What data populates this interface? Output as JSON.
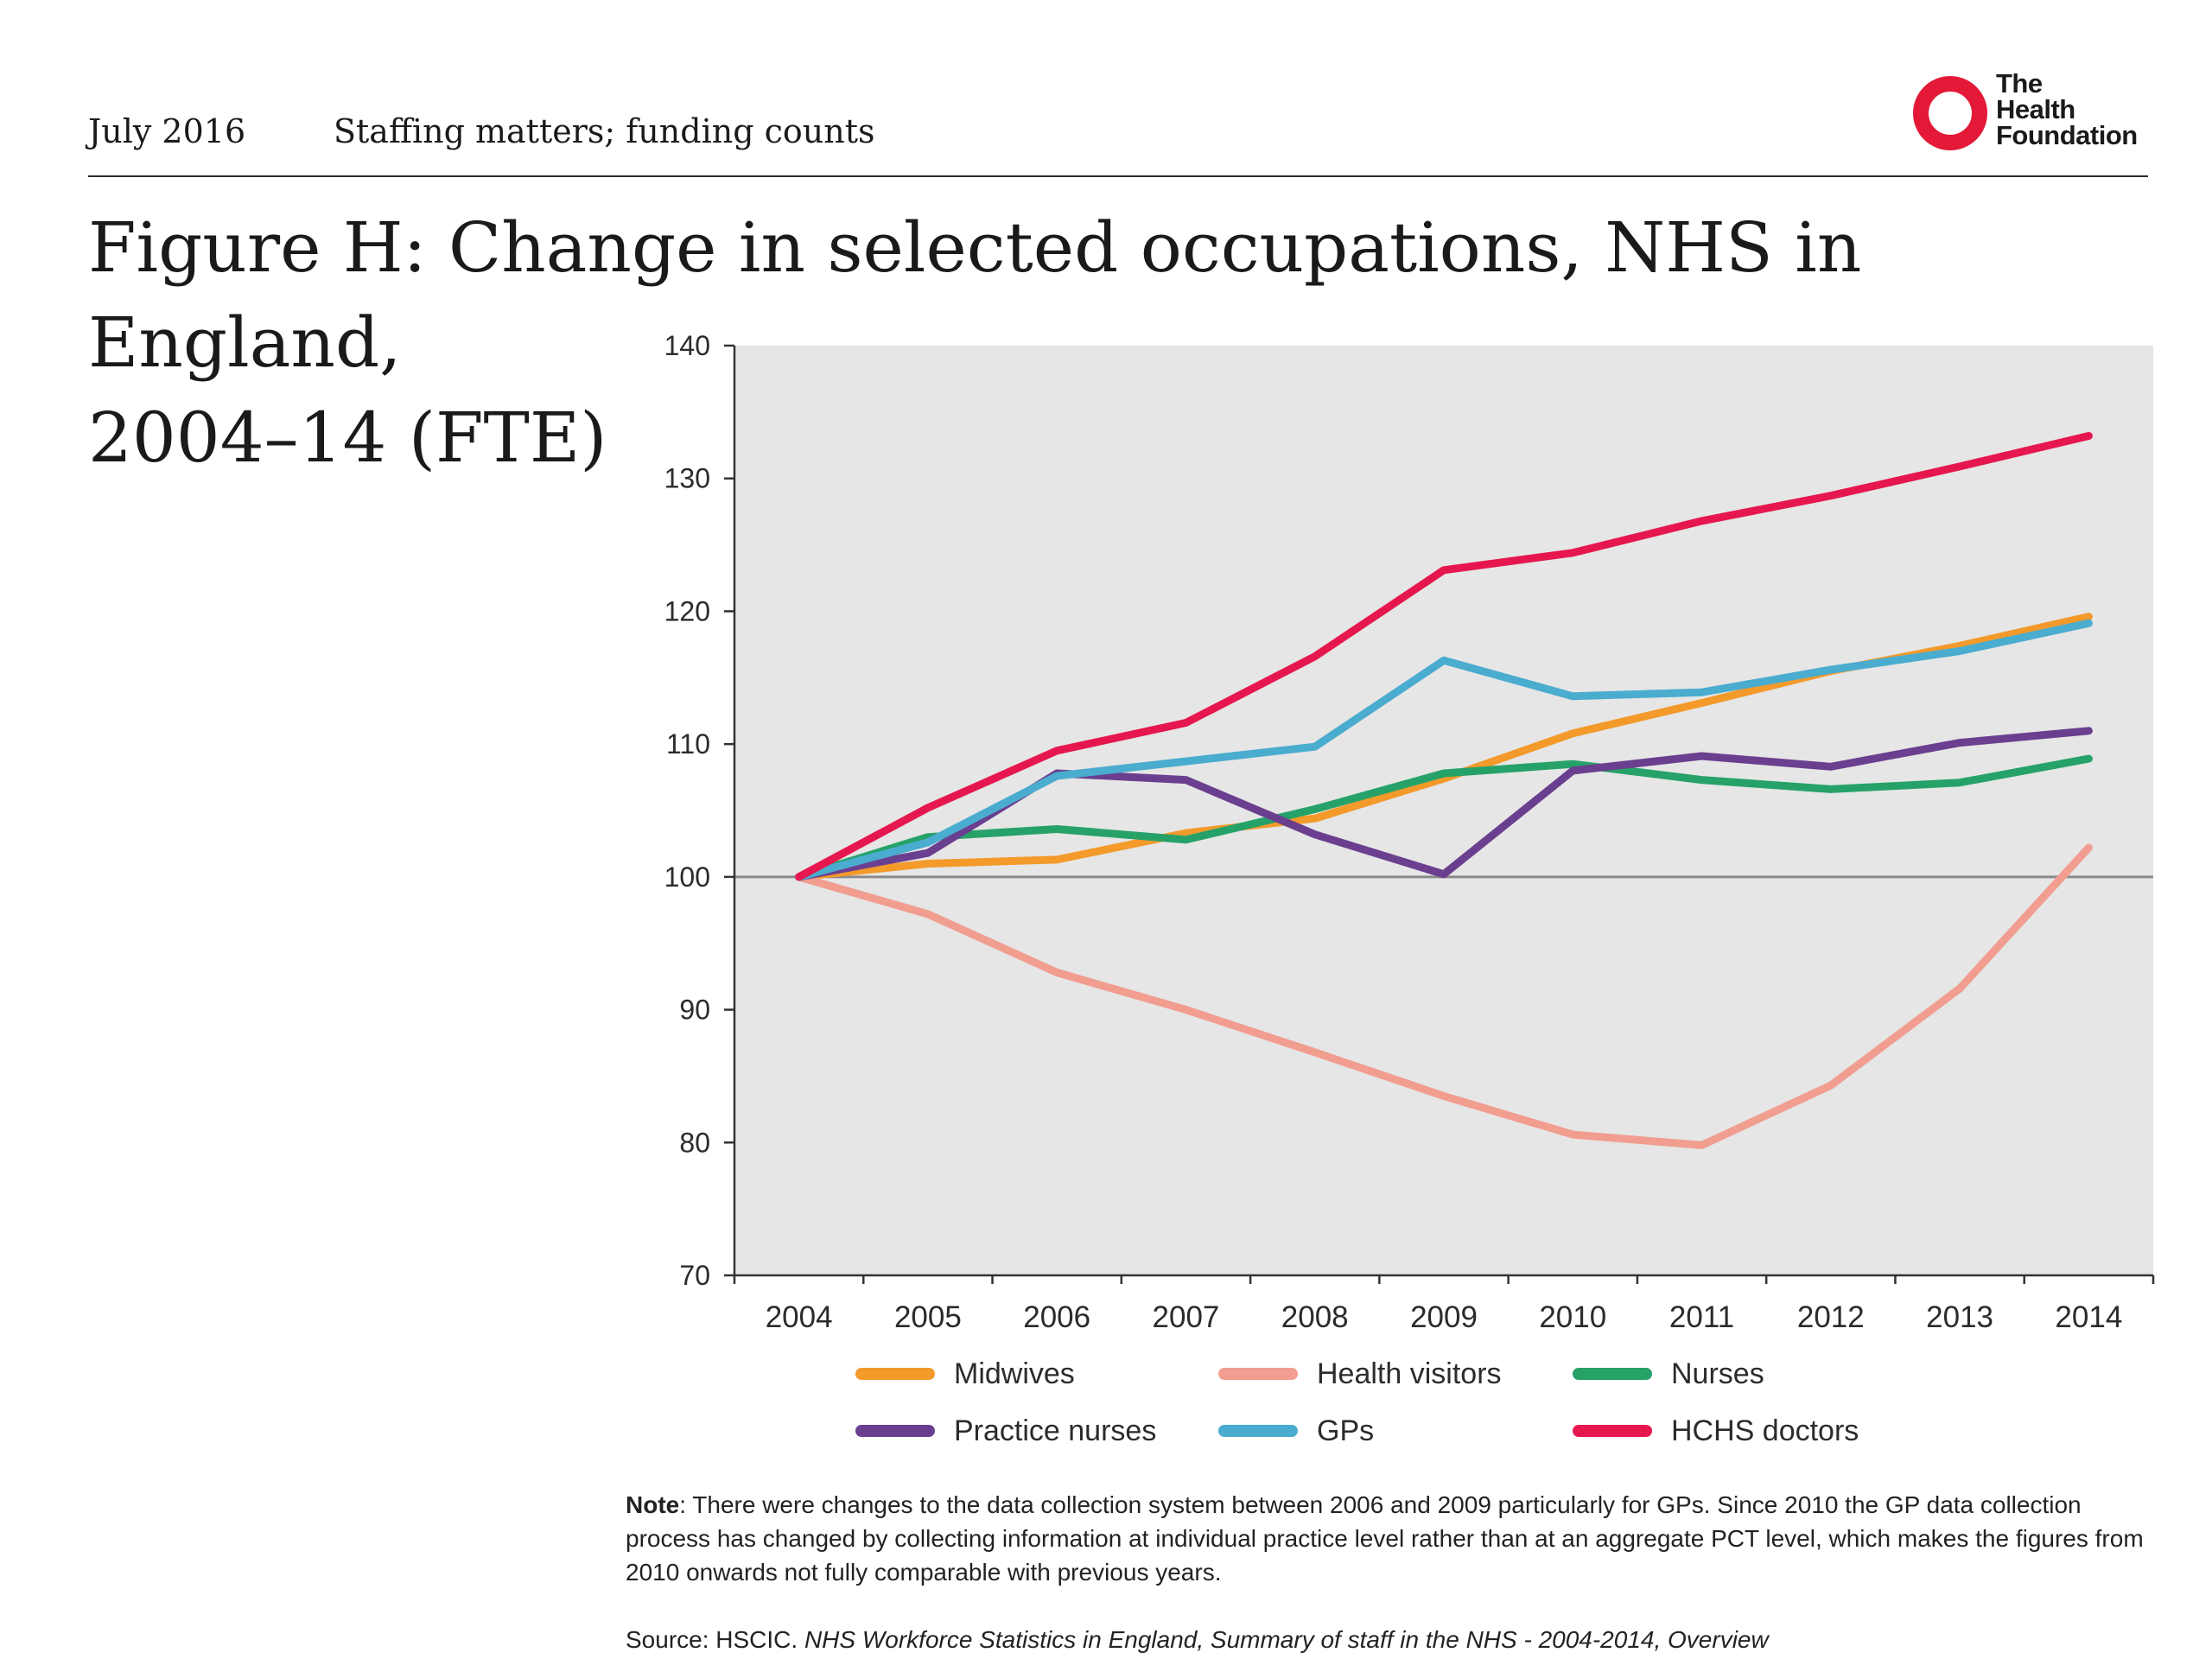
{
  "header": {
    "date": "July 2016",
    "report_title": "Staffing matters; funding counts"
  },
  "logo": {
    "line1": "The",
    "line2": "Health",
    "line3": "Foundation",
    "ring_color": "#e31937"
  },
  "figure": {
    "title_line1": "Figure H: Change in selected occupations, NHS in England,",
    "title_line2": "2004–14 (FTE)"
  },
  "chart_data": {
    "type": "line",
    "title": "Figure H: Change in selected occupations, NHS in England, 2004–14 (FTE)",
    "xlabel": "",
    "ylabel": "",
    "categories": [
      "2004",
      "2005",
      "2006",
      "2007",
      "2008",
      "2009",
      "2010",
      "2011",
      "2012",
      "2013",
      "2014"
    ],
    "ylim": [
      70,
      140
    ],
    "yticks": [
      70,
      80,
      90,
      100,
      110,
      120,
      130,
      140
    ],
    "reference_line": 100,
    "plot_background": "#e6e6e6",
    "grid": false,
    "legend_position": "bottom",
    "series": [
      {
        "name": "Midwives",
        "color": "#f39a2b",
        "values": [
          100,
          101,
          101.3,
          103.3,
          104.4,
          107.4,
          110.8,
          113.1,
          115.5,
          117.4,
          119.6
        ]
      },
      {
        "name": "Health visitors",
        "color": "#f19d8f",
        "values": [
          100,
          97.2,
          92.8,
          90.0,
          86.8,
          83.5,
          80.6,
          79.8,
          84.3,
          91.6,
          102.2
        ]
      },
      {
        "name": "Nurses",
        "color": "#26a269",
        "values": [
          100,
          103,
          103.6,
          102.8,
          105.1,
          107.8,
          108.5,
          107.3,
          106.6,
          107.1,
          108.9
        ]
      },
      {
        "name": "Practice nurses",
        "color": "#6b3f8f",
        "values": [
          100,
          101.8,
          107.8,
          107.3,
          103.2,
          100.2,
          108.0,
          109.1,
          108.3,
          110.1,
          111.0
        ]
      },
      {
        "name": "GPs",
        "color": "#4aaccf",
        "values": [
          100,
          102.6,
          107.6,
          108.7,
          109.8,
          116.3,
          113.6,
          113.9,
          115.6,
          117.0,
          119.1
        ]
      },
      {
        "name": "HCHS doctors",
        "color": "#e6174f",
        "values": [
          100,
          105.2,
          109.5,
          111.6,
          116.6,
          123.1,
          124.4,
          126.8,
          128.7,
          130.9,
          133.2
        ]
      }
    ]
  },
  "note": {
    "label": "Note",
    "text": ": There were changes to the data collection system between 2006 and 2009 particularly for GPs. Since 2010 the GP data collection process has changed by collecting information at individual practice level rather than at an aggregate PCT level, which makes the figures from 2010 onwards not fully comparable with previous years."
  },
  "source": {
    "prefix": "Source: HSCIC. ",
    "title": "NHS Workforce Statistics in England, Summary of staff in the NHS - 2004-2014, Overview"
  }
}
